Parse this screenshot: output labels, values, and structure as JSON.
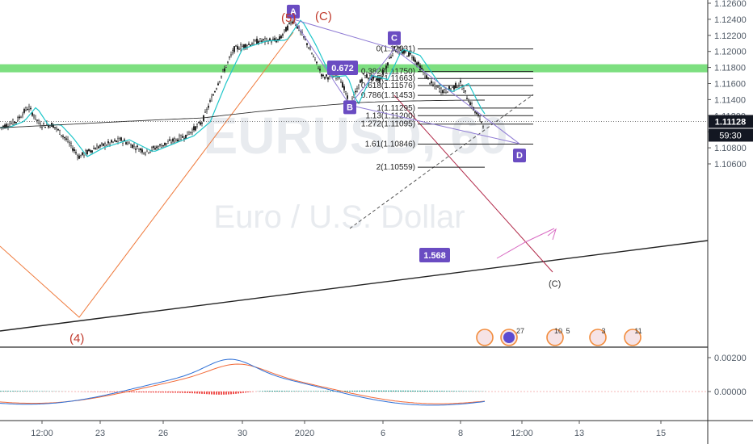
{
  "chart_data": {
    "type": "line",
    "watermark": {
      "symbol": "EURUSD, 60",
      "description": "Euro / U.S. Dollar"
    },
    "price_axis": {
      "ticks": [
        "1.12600",
        "1.12400",
        "1.12200",
        "1.12000",
        "1.11800",
        "1.11600",
        "1.11400",
        "1.11200",
        "1.11000",
        "1.10800",
        "1.10600"
      ],
      "ylim": [
        1.1049,
        1.1262
      ],
      "current_price": "1.11128",
      "countdown": "59:30"
    },
    "time_axis": {
      "ticks": [
        "12:00",
        "23",
        "26",
        "30",
        "2020",
        "6",
        "8",
        "12:00",
        "13",
        "15"
      ]
    },
    "macd_axis": {
      "ticks": [
        "0.00200",
        "0.00000"
      ]
    },
    "resistance_zone": {
      "price": 1.1179,
      "color": "#66d96a"
    },
    "wave_labels": [
      {
        "id": "w4",
        "text": "(4)"
      },
      {
        "id": "w5",
        "text": "(5)"
      },
      {
        "id": "wc",
        "text": "(C)"
      },
      {
        "id": "wc2",
        "text": "(C)"
      }
    ],
    "pattern_points": [
      {
        "label": "A",
        "price": 1.124
      },
      {
        "label": "B",
        "price": 1.1133
      },
      {
        "label": "C",
        "price": 1.1203
      },
      {
        "label": "D",
        "price": 1.1085
      }
    ],
    "pattern_ratios": [
      "0.672",
      "1.568"
    ],
    "fib_levels": [
      {
        "label": "0(1.12031)",
        "price": 1.12031
      },
      {
        "label": "0.382(1.11750)",
        "price": 1.1175
      },
      {
        "label": "0.5(1.11663)",
        "price": 1.11663
      },
      {
        "label": "0.618(1.11576)",
        "price": 1.11576
      },
      {
        "label": "0.786(1.11453)",
        "price": 1.11453
      },
      {
        "label": "1(1.11295)",
        "price": 1.11295
      },
      {
        "label": "1.13(1.11200)",
        "price": 1.112
      },
      {
        "label": "1.272(1.11095)",
        "price": 1.11095
      },
      {
        "label": "1.61(1.10846)",
        "price": 1.10846
      },
      {
        "label": "2(1.10559)",
        "price": 1.10559
      }
    ],
    "event_badges": [
      "27",
      "10",
      "5",
      "3",
      "11"
    ],
    "colors": {
      "price": "#1a1a1a",
      "ema_fast": "#1ec6c9",
      "ma_slow": "#333333",
      "macd": "#2d6fd6",
      "signal": "#f26b3a",
      "hist_pos": "#26a69a",
      "hist_neg": "#ef5350",
      "pattern": "#8e7ad4",
      "badge": "#6a4cc2",
      "channel": "#b22a4a"
    }
  }
}
